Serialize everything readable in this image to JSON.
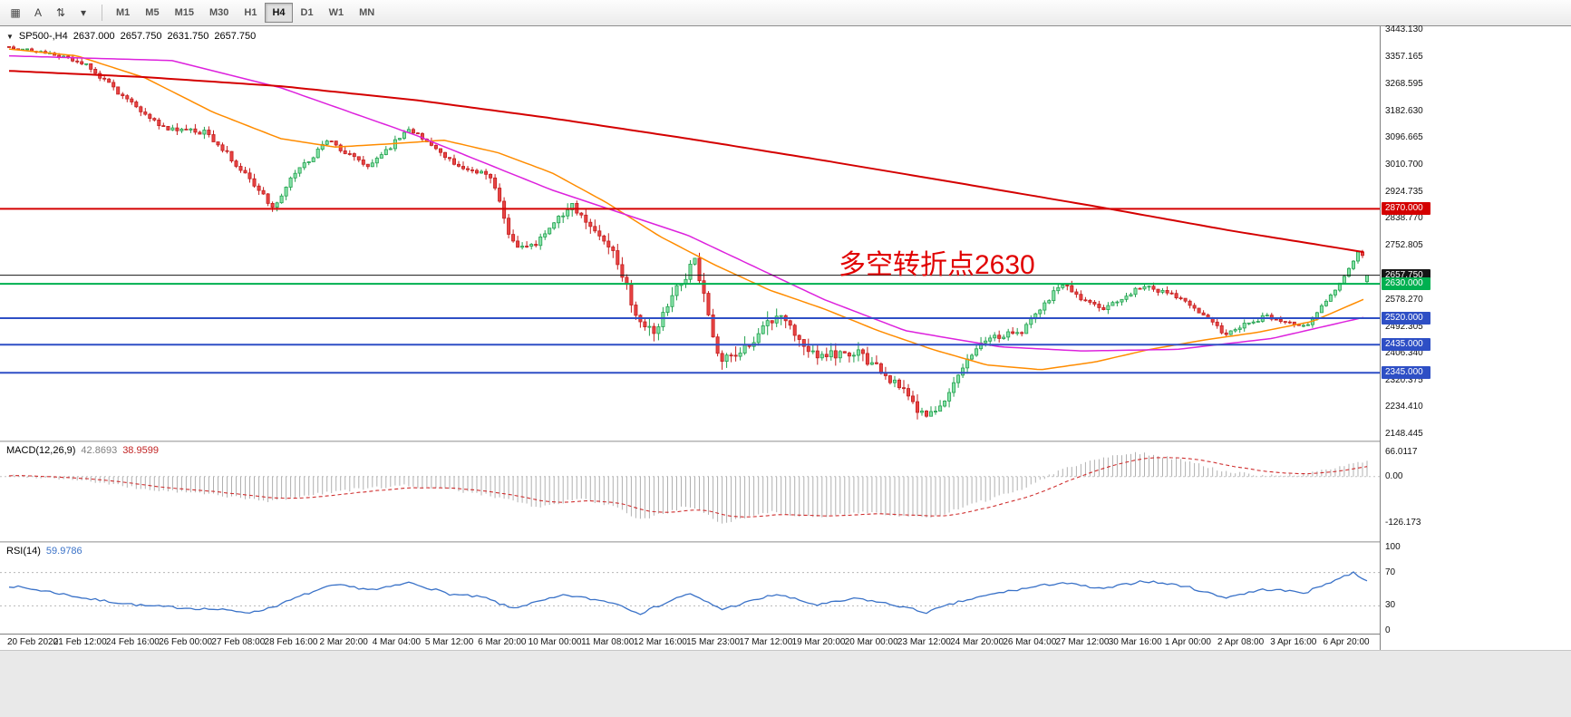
{
  "toolbar": {
    "tools": [
      {
        "name": "new-chart",
        "glyph": "▦"
      },
      {
        "name": "text-label-tool",
        "glyph": "A"
      },
      {
        "name": "scroll-shift-tool",
        "glyph": "⇅"
      },
      {
        "name": "tools-dropdown",
        "glyph": "▾"
      }
    ],
    "timeframes": [
      "M1",
      "M5",
      "M15",
      "M30",
      "H1",
      "H4",
      "D1",
      "W1",
      "MN"
    ],
    "active_timeframe": "H4"
  },
  "chart": {
    "title": {
      "symbol": "SP500-,H4",
      "open": "2637.000",
      "high": "2657.750",
      "low": "2631.750",
      "close": "2657.750"
    },
    "annotation": {
      "text": "多空转折点2630",
      "color": "#e10000"
    }
  },
  "indicators": {
    "macd": {
      "name": "MACD(12,26,9)",
      "value_main": "42.8693",
      "value_signal": "38.9599"
    },
    "rsi": {
      "name": "RSI(14)",
      "value": "59.9786"
    }
  },
  "chart_data": [
    {
      "type": "candlestick",
      "title": "SP500-,H4",
      "bars": 300,
      "ylim": [
        2148.445,
        3443.13
      ],
      "ohlc_current": {
        "open": 2637.0,
        "high": 2657.75,
        "low": 2631.75,
        "close": 2657.75
      },
      "y_ticks": [
        "3443.130",
        "3357.165",
        "3268.595",
        "3182.630",
        "3096.665",
        "3010.700",
        "2924.735",
        "2838.770",
        "2752.805",
        "2578.270",
        "2492.305",
        "2406.340",
        "2320.375",
        "2234.410",
        "2148.445"
      ],
      "x_labels": [
        "20 Feb 2020",
        "21 Feb 12:00",
        "24 Feb 16:00",
        "26 Feb 00:00",
        "27 Feb 08:00",
        "28 Feb 16:00",
        "2 Mar 20:00",
        "4 Mar 04:00",
        "5 Mar 12:00",
        "6 Mar 20:00",
        "10 Mar 00:00",
        "11 Mar 08:00",
        "12 Mar 16:00",
        "15 Mar 23:00",
        "17 Mar 12:00",
        "19 Mar 20:00",
        "20 Mar 00:00",
        "23 Mar 12:00",
        "24 Mar 20:00",
        "26 Mar 04:00",
        "27 Mar 12:00",
        "30 Mar 16:00",
        "1 Apr 00:00",
        "2 Apr 08:00",
        "3 Apr 16:00",
        "6 Apr 20:00"
      ],
      "levels": [
        {
          "price": 2870.0,
          "label": "2870.000",
          "color": "#d40000",
          "type": "hline"
        },
        {
          "price": 2657.75,
          "label": "2657.750",
          "color": "#151515",
          "type": "current"
        },
        {
          "price": 2630.0,
          "label": "2630.000",
          "color": "#00b050",
          "type": "hline"
        },
        {
          "price": 2520.0,
          "label": "2520.000",
          "color": "#2e4fc5",
          "type": "hline"
        },
        {
          "price": 2435.0,
          "label": "2435.000",
          "color": "#2e4fc5",
          "type": "hline"
        },
        {
          "price": 2345.0,
          "label": "2345.000",
          "color": "#2e4fc5",
          "type": "hline"
        }
      ],
      "close_path": [
        [
          0,
          3388
        ],
        [
          0.025,
          3373
        ],
        [
          0.055,
          3337
        ],
        [
          0.085,
          3226
        ],
        [
          0.115,
          3128
        ],
        [
          0.145,
          3116
        ],
        [
          0.175,
          2979
        ],
        [
          0.195,
          2872
        ],
        [
          0.205,
          2954
        ],
        [
          0.235,
          3090
        ],
        [
          0.265,
          3003
        ],
        [
          0.295,
          3130
        ],
        [
          0.325,
          3024
        ],
        [
          0.355,
          2972
        ],
        [
          0.37,
          2762
        ],
        [
          0.385,
          2747
        ],
        [
          0.415,
          2882
        ],
        [
          0.445,
          2741
        ],
        [
          0.465,
          2492
        ],
        [
          0.475,
          2481
        ],
        [
          0.505,
          2711
        ],
        [
          0.523,
          2388
        ],
        [
          0.535,
          2392
        ],
        [
          0.565,
          2529
        ],
        [
          0.595,
          2398
        ],
        [
          0.625,
          2409
        ],
        [
          0.655,
          2305
        ],
        [
          0.675,
          2196
        ],
        [
          0.685,
          2237
        ],
        [
          0.715,
          2447
        ],
        [
          0.745,
          2476
        ],
        [
          0.775,
          2628
        ],
        [
          0.805,
          2541
        ],
        [
          0.835,
          2624
        ],
        [
          0.865,
          2584
        ],
        [
          0.895,
          2470
        ],
        [
          0.925,
          2526
        ],
        [
          0.955,
          2490
        ],
        [
          0.985,
          2663
        ],
        [
          0.995,
          2748
        ],
        [
          1,
          2657.75
        ]
      ],
      "volatility": [
        [
          0,
          12
        ],
        [
          0.08,
          26
        ],
        [
          0.16,
          34
        ],
        [
          0.22,
          28
        ],
        [
          0.3,
          28
        ],
        [
          0.38,
          40
        ],
        [
          0.46,
          58
        ],
        [
          0.54,
          62
        ],
        [
          0.62,
          55
        ],
        [
          0.68,
          48
        ],
        [
          0.73,
          38
        ],
        [
          0.8,
          30
        ],
        [
          0.88,
          26
        ],
        [
          0.95,
          22
        ],
        [
          1,
          16
        ]
      ],
      "moving_averages": [
        {
          "name": "ma-fast-orange",
          "color": "#ff8c00",
          "width": 1.5,
          "path": [
            [
              0,
              3382
            ],
            [
              0.05,
              3360
            ],
            [
              0.1,
              3290
            ],
            [
              0.15,
              3180
            ],
            [
              0.2,
              3095
            ],
            [
              0.24,
              3068
            ],
            [
              0.28,
              3078
            ],
            [
              0.32,
              3090
            ],
            [
              0.36,
              3050
            ],
            [
              0.4,
              2985
            ],
            [
              0.44,
              2890
            ],
            [
              0.48,
              2780
            ],
            [
              0.52,
              2690
            ],
            [
              0.56,
              2610
            ],
            [
              0.6,
              2550
            ],
            [
              0.64,
              2480
            ],
            [
              0.68,
              2420
            ],
            [
              0.72,
              2370
            ],
            [
              0.76,
              2355
            ],
            [
              0.8,
              2380
            ],
            [
              0.84,
              2420
            ],
            [
              0.88,
              2450
            ],
            [
              0.92,
              2475
            ],
            [
              0.96,
              2510
            ],
            [
              1,
              2585
            ]
          ]
        },
        {
          "name": "ma-mid-magenta",
          "color": "#dd22dd",
          "width": 1.5,
          "path": [
            [
              0,
              3360
            ],
            [
              0.12,
              3345
            ],
            [
              0.2,
              3258
            ],
            [
              0.3,
              3105
            ],
            [
              0.4,
              2930
            ],
            [
              0.5,
              2785
            ],
            [
              0.6,
              2580
            ],
            [
              0.66,
              2480
            ],
            [
              0.73,
              2428
            ],
            [
              0.79,
              2415
            ],
            [
              0.86,
              2420
            ],
            [
              0.93,
              2455
            ],
            [
              1,
              2525
            ]
          ]
        },
        {
          "name": "ma-slow-red",
          "color": "#d40000",
          "width": 2,
          "path": [
            [
              0,
              3312
            ],
            [
              0.1,
              3292
            ],
            [
              0.2,
              3263
            ],
            [
              0.3,
              3218
            ],
            [
              0.4,
              3160
            ],
            [
              0.5,
              3095
            ],
            [
              0.6,
              3025
            ],
            [
              0.7,
              2952
            ],
            [
              0.8,
              2878
            ],
            [
              0.9,
              2800
            ],
            [
              1,
              2730
            ]
          ]
        }
      ],
      "up_color": "#22a04e",
      "up_fill": "#86e2a8",
      "down_color": "#c41e1e",
      "down_fill": "#e84444"
    },
    {
      "type": "macd-histogram",
      "title": "MACD(12,26,9)",
      "current_main": 42.8693,
      "current_signal": 38.9599,
      "y_ticks": [
        "66.0117",
        "0.00",
        "-126.173"
      ],
      "vrange": [
        93,
        -173
      ],
      "path": [
        [
          0,
          4
        ],
        [
          0.05,
          -8
        ],
        [
          0.1,
          -35
        ],
        [
          0.15,
          -48
        ],
        [
          0.19,
          -68
        ],
        [
          0.24,
          -40
        ],
        [
          0.29,
          -24
        ],
        [
          0.33,
          -38
        ],
        [
          0.37,
          -62
        ],
        [
          0.39,
          -85
        ],
        [
          0.42,
          -60
        ],
        [
          0.445,
          -82
        ],
        [
          0.465,
          -118
        ],
        [
          0.5,
          -80
        ],
        [
          0.525,
          -126
        ],
        [
          0.56,
          -95
        ],
        [
          0.595,
          -112
        ],
        [
          0.63,
          -95
        ],
        [
          0.655,
          -108
        ],
        [
          0.68,
          -112
        ],
        [
          0.71,
          -75
        ],
        [
          0.745,
          -35
        ],
        [
          0.775,
          20
        ],
        [
          0.81,
          56
        ],
        [
          0.83,
          66
        ],
        [
          0.86,
          48
        ],
        [
          0.895,
          14
        ],
        [
          0.925,
          2
        ],
        [
          0.955,
          6
        ],
        [
          0.975,
          22
        ],
        [
          1,
          42.87
        ]
      ],
      "colors": {
        "histogram": "#b0b0b0",
        "signal": "#cf2e2e",
        "zero_line": "#c0c0c0"
      }
    },
    {
      "type": "line",
      "title": "RSI(14)",
      "current": 59.9786,
      "y_ticks": [
        "100",
        "70",
        "30",
        "0"
      ],
      "levels": [
        70,
        30
      ],
      "path": [
        [
          0,
          54
        ],
        [
          0.03,
          47
        ],
        [
          0.06,
          38
        ],
        [
          0.1,
          30
        ],
        [
          0.15,
          26
        ],
        [
          0.18,
          22
        ],
        [
          0.2,
          32
        ],
        [
          0.22,
          45
        ],
        [
          0.24,
          55
        ],
        [
          0.27,
          49
        ],
        [
          0.295,
          58
        ],
        [
          0.325,
          44
        ],
        [
          0.35,
          40
        ],
        [
          0.37,
          27
        ],
        [
          0.41,
          43
        ],
        [
          0.445,
          34
        ],
        [
          0.465,
          21
        ],
        [
          0.5,
          45
        ],
        [
          0.525,
          26
        ],
        [
          0.565,
          44
        ],
        [
          0.595,
          31
        ],
        [
          0.625,
          39
        ],
        [
          0.655,
          30
        ],
        [
          0.675,
          22
        ],
        [
          0.7,
          35
        ],
        [
          0.73,
          46
        ],
        [
          0.775,
          58
        ],
        [
          0.805,
          50
        ],
        [
          0.835,
          60
        ],
        [
          0.865,
          54
        ],
        [
          0.895,
          40
        ],
        [
          0.925,
          50
        ],
        [
          0.955,
          46
        ],
        [
          0.975,
          60
        ],
        [
          0.99,
          70
        ],
        [
          1,
          59.98
        ]
      ],
      "color": "#3a72c8",
      "level_line_color": "#b8b8b8"
    }
  ]
}
